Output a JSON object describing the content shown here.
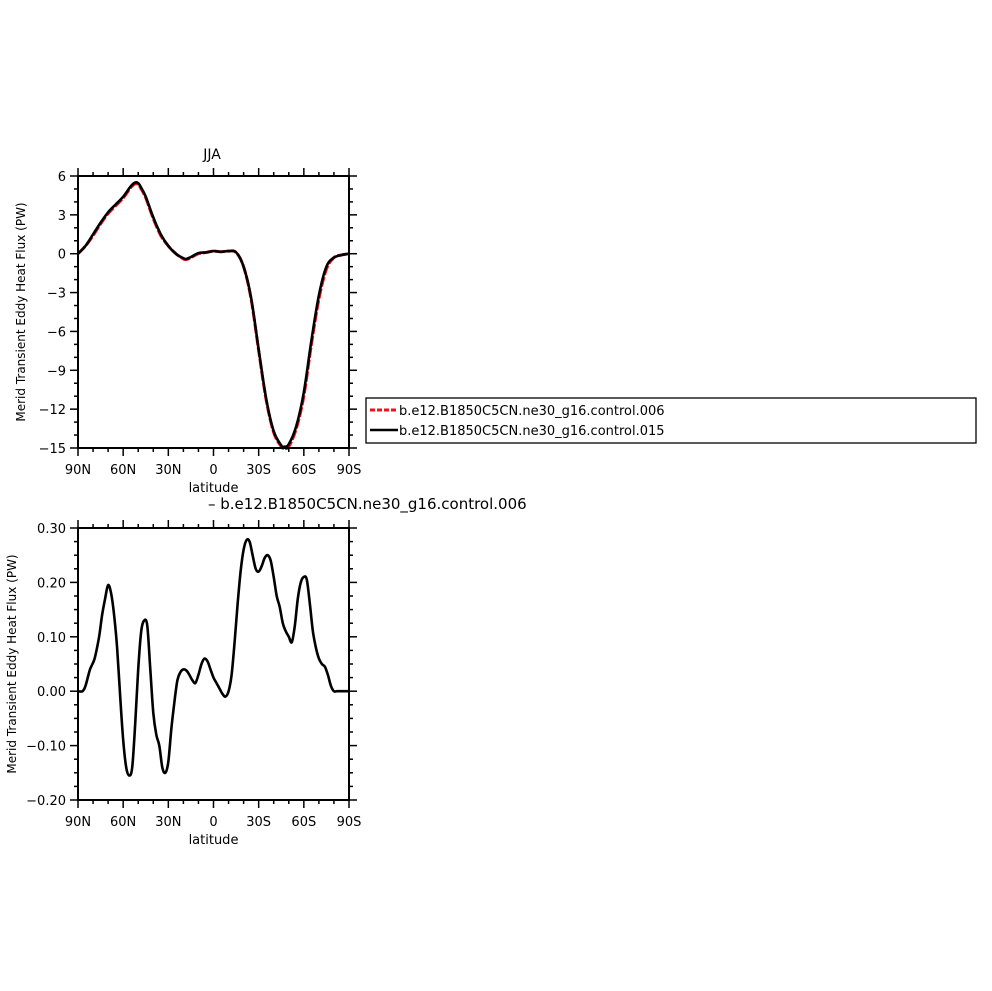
{
  "colors": {
    "red_series": "#e8141e",
    "black_series": "#000000",
    "axis": "#000000"
  },
  "diff_title": "– b.e12.B1850C5CN.ne30_g16.control.006",
  "chart_data": [
    {
      "type": "line",
      "title": "JJA",
      "xlabel": "latitude",
      "ylabel": "Merid Transient Eddy Heat Flux (PW)",
      "xlim": [
        90,
        -90
      ],
      "ylim": [
        -15,
        6
      ],
      "xticks": [
        90,
        60,
        30,
        0,
        -30,
        -60,
        -90
      ],
      "xticklabels": [
        "90N",
        "60N",
        "30N",
        "0",
        "30S",
        "60S",
        "90S"
      ],
      "yticks": [
        6,
        3,
        0,
        -3,
        -6,
        -9,
        -12,
        -15
      ],
      "yticklabels": [
        "6",
        "3",
        "0",
        "−3",
        "−6",
        "−9",
        "−12",
        "−15"
      ],
      "legend": "right",
      "series": [
        {
          "name": "b.e12.B1850C5CN.ne30_g16.control.006",
          "color": "red",
          "style": "dashed",
          "x": [
            90,
            85,
            80,
            75,
            70,
            65,
            60,
            55,
            52,
            50,
            48,
            45,
            40,
            35,
            30,
            25,
            20,
            18,
            15,
            10,
            5,
            0,
            -5,
            -10,
            -15,
            -20,
            -25,
            -30,
            -35,
            -40,
            -45,
            -47,
            -50,
            -55,
            -60,
            -65,
            -70,
            -75,
            -80,
            -85,
            -90
          ],
          "y": [
            0.0,
            0.6,
            1.4,
            2.3,
            3.1,
            3.7,
            4.3,
            5.1,
            5.4,
            5.35,
            5.0,
            4.3,
            2.7,
            1.4,
            0.6,
            0.0,
            -0.4,
            -0.45,
            -0.3,
            0.0,
            0.1,
            0.2,
            0.15,
            0.2,
            0.1,
            -1.0,
            -3.5,
            -7.5,
            -11.3,
            -13.8,
            -14.9,
            -15.0,
            -14.9,
            -13.5,
            -11.0,
            -7.0,
            -3.5,
            -1.2,
            -0.3,
            -0.1,
            0.0
          ]
        },
        {
          "name": "b.e12.B1850C5CN.ne30_g16.control.015",
          "color": "black",
          "style": "solid",
          "x": [
            90,
            85,
            80,
            75,
            70,
            65,
            60,
            55,
            52,
            50,
            48,
            45,
            40,
            35,
            30,
            25,
            20,
            18,
            15,
            10,
            5,
            0,
            -5,
            -10,
            -15,
            -20,
            -25,
            -30,
            -35,
            -40,
            -45,
            -47,
            -50,
            -55,
            -60,
            -65,
            -70,
            -75,
            -80,
            -85,
            -90
          ],
          "y": [
            0.0,
            0.6,
            1.5,
            2.4,
            3.2,
            3.8,
            4.4,
            5.2,
            5.5,
            5.45,
            5.1,
            4.4,
            2.8,
            1.5,
            0.6,
            0.0,
            -0.35,
            -0.4,
            -0.25,
            0.05,
            0.1,
            0.2,
            0.15,
            0.2,
            0.1,
            -1.0,
            -3.4,
            -7.4,
            -11.2,
            -13.7,
            -14.8,
            -14.9,
            -14.7,
            -13.3,
            -10.7,
            -6.7,
            -3.2,
            -1.0,
            -0.3,
            -0.1,
            0.0
          ]
        }
      ]
    },
    {
      "type": "line",
      "xlabel": "latitude",
      "ylabel": "Merid Transient Eddy Heat Flux (PW)",
      "xlim": [
        90,
        -90
      ],
      "ylim": [
        -0.2,
        0.3
      ],
      "xticks": [
        90,
        60,
        30,
        0,
        -30,
        -60,
        -90
      ],
      "xticklabels": [
        "90N",
        "60N",
        "30N",
        "0",
        "30S",
        "60S",
        "90S"
      ],
      "yticks": [
        0.3,
        0.2,
        0.1,
        0.0,
        -0.1,
        -0.2
      ],
      "yticklabels": [
        "0.30",
        "0.20",
        "0.10",
        "0.00",
        "−0.10",
        "−0.20"
      ],
      "series": [
        {
          "color": "black",
          "style": "solid",
          "x": [
            90,
            87,
            85,
            82,
            79,
            76,
            74,
            72,
            70,
            68,
            66,
            64,
            62,
            60,
            58,
            56,
            54,
            52,
            50,
            48,
            46,
            44,
            42,
            40,
            38,
            36,
            34,
            32,
            30,
            28,
            26,
            24,
            22,
            20,
            18,
            16,
            14,
            12,
            10,
            8,
            6,
            4,
            2,
            0,
            -2,
            -4,
            -6,
            -8,
            -10,
            -12,
            -14,
            -16,
            -18,
            -20,
            -22,
            -24,
            -26,
            -28,
            -30,
            -32,
            -34,
            -36,
            -38,
            -40,
            -42,
            -44,
            -46,
            -48,
            -50,
            -52,
            -54,
            -56,
            -58,
            -60,
            -62,
            -64,
            -66,
            -68,
            -70,
            -72,
            -74,
            -76,
            -78,
            -80,
            -82,
            -84,
            -86,
            -88,
            -90
          ],
          "y": [
            0.0,
            0.0,
            0.01,
            0.04,
            0.06,
            0.1,
            0.14,
            0.17,
            0.195,
            0.18,
            0.14,
            0.08,
            -0.01,
            -0.09,
            -0.14,
            -0.155,
            -0.14,
            -0.06,
            0.04,
            0.11,
            0.13,
            0.12,
            0.04,
            -0.04,
            -0.08,
            -0.1,
            -0.14,
            -0.15,
            -0.13,
            -0.07,
            -0.02,
            0.02,
            0.035,
            0.04,
            0.038,
            0.03,
            0.02,
            0.015,
            0.03,
            0.05,
            0.06,
            0.055,
            0.04,
            0.025,
            0.015,
            0.005,
            -0.005,
            -0.01,
            0.0,
            0.03,
            0.09,
            0.16,
            0.22,
            0.26,
            0.278,
            0.275,
            0.25,
            0.225,
            0.22,
            0.23,
            0.245,
            0.25,
            0.24,
            0.21,
            0.175,
            0.155,
            0.125,
            0.11,
            0.1,
            0.09,
            0.12,
            0.17,
            0.2,
            0.21,
            0.205,
            0.16,
            0.11,
            0.08,
            0.06,
            0.05,
            0.045,
            0.03,
            0.01,
            0.0,
            0.0,
            0.0,
            0.0,
            0.0,
            0.0
          ]
        }
      ]
    }
  ]
}
